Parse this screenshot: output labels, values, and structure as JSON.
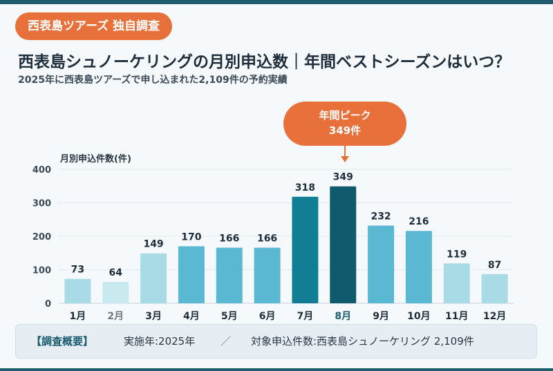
{
  "badge": "西表島ツアーズ 独自調査",
  "title": "西表島シュノーケリングの月別申込数｜年間ベストシーズンはいつ？",
  "subtitle": "2025年に西表島ツアーズで申し込まれた2,109件の予約実績",
  "peak_callout": {
    "line1": "年間ピーク",
    "line2": "349件"
  },
  "chart_data": {
    "type": "bar",
    "ylabel": "月別申込件数(件)",
    "categories": [
      "1月",
      "2月",
      "3月",
      "4月",
      "5月",
      "6月",
      "7月",
      "8月",
      "9月",
      "10月",
      "11月",
      "12月"
    ],
    "values": [
      73,
      64,
      149,
      170,
      166,
      166,
      318,
      349,
      232,
      216,
      119,
      87
    ],
    "ylim": [
      0,
      400
    ],
    "yticks": [
      0,
      100,
      200,
      300,
      400
    ],
    "grid": true,
    "bar_colors": [
      "#a8dbe6",
      "#c9e9f0",
      "#a8dbe6",
      "#5bb8d3",
      "#5bb8d3",
      "#5bb8d3",
      "#127e96",
      "#0f5b6d",
      "#5bb8d3",
      "#5bb8d3",
      "#a8dbe6",
      "#a8dbe6"
    ],
    "label_colors": [
      "#1e2d3b",
      "#6b7884",
      "#1e2d3b",
      "#1e2d3b",
      "#1e2d3b",
      "#1e2d3b",
      "#1e2d3b",
      "#1a5c70",
      "#1e2d3b",
      "#1e2d3b",
      "#1e2d3b",
      "#1e2d3b"
    ]
  },
  "summary": {
    "label": "【調査概要】",
    "item1": "実施年:2025年",
    "separator": "／",
    "item2": "対象申込件数:西表島シュノーケリング 2,109件"
  },
  "colors": {
    "accent": "#e8703a",
    "dark": "#1e5c70",
    "background": "#f5f9fb"
  }
}
